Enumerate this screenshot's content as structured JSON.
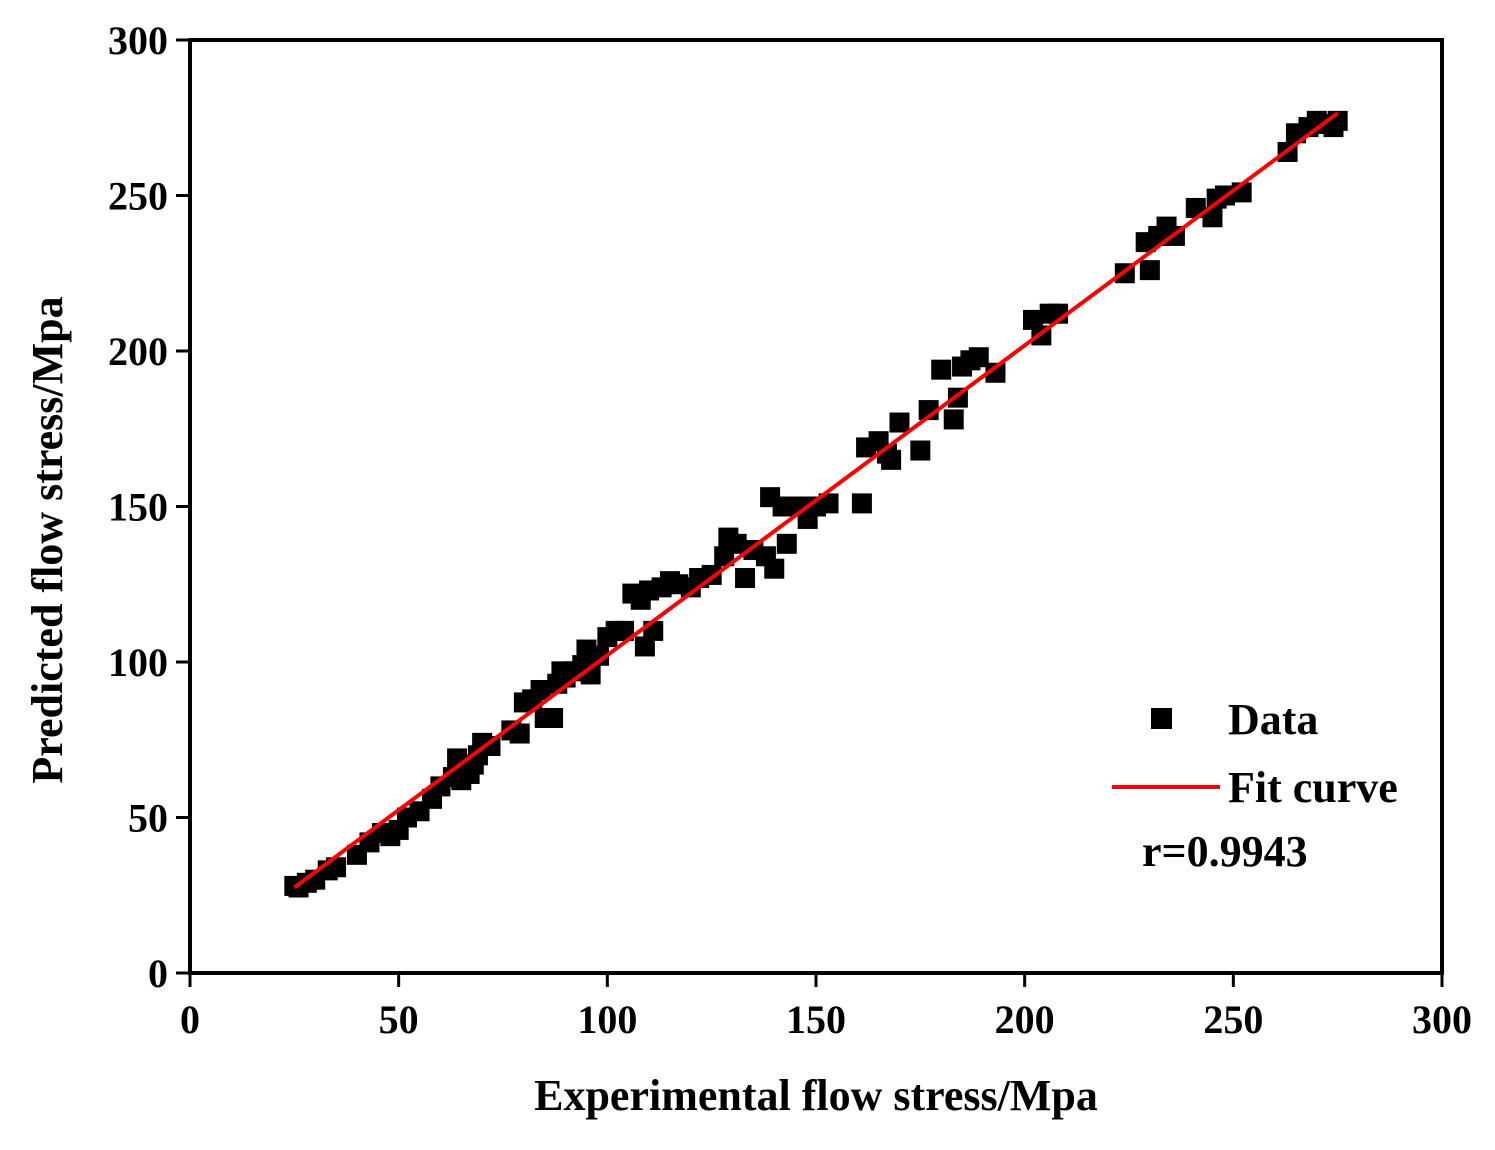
{
  "chart_data": {
    "type": "scatter",
    "title": "",
    "xlabel": "Experimental flow stress/Mpa",
    "ylabel": "Predicted flow stress/Mpa",
    "xlim": [
      0,
      300
    ],
    "ylim": [
      0,
      300
    ],
    "xticks": [
      "0",
      "50",
      "100",
      "150",
      "200",
      "250",
      "300"
    ],
    "yticks": [
      "0",
      "50",
      "100",
      "150",
      "200",
      "250",
      "300"
    ],
    "grid": false,
    "legend_position": "bottom-right",
    "legend": {
      "data_label": "Data",
      "fit_label": "Fit curve"
    },
    "annotation": "r=0.9943",
    "colors": {
      "data": "#000000",
      "fit": "#ff0000",
      "axis": "#000000"
    },
    "fit_line": {
      "x": [
        25,
        275
      ],
      "y": [
        27.5,
        276.5
      ]
    },
    "series": [
      {
        "name": "Data",
        "points": [
          [
            25,
            28
          ],
          [
            26,
            27.5
          ],
          [
            28,
            29
          ],
          [
            30,
            30
          ],
          [
            33,
            33
          ],
          [
            35,
            34
          ],
          [
            40,
            38
          ],
          [
            43,
            42
          ],
          [
            46,
            45
          ],
          [
            48,
            44
          ],
          [
            50,
            46
          ],
          [
            52,
            50
          ],
          [
            55,
            52
          ],
          [
            58,
            56
          ],
          [
            60,
            60
          ],
          [
            63,
            63
          ],
          [
            64,
            69
          ],
          [
            65,
            62
          ],
          [
            67,
            64
          ],
          [
            68,
            67
          ],
          [
            69,
            70
          ],
          [
            70,
            74
          ],
          [
            72,
            73
          ],
          [
            77,
            78
          ],
          [
            79,
            77
          ],
          [
            80,
            87
          ],
          [
            82,
            88
          ],
          [
            84,
            91
          ],
          [
            85,
            82
          ],
          [
            87,
            82
          ],
          [
            88,
            93
          ],
          [
            89,
            97
          ],
          [
            90,
            95
          ],
          [
            92,
            97
          ],
          [
            94,
            99
          ],
          [
            95,
            104
          ],
          [
            96,
            96
          ],
          [
            98,
            102
          ],
          [
            100,
            108
          ],
          [
            102,
            110
          ],
          [
            104,
            110
          ],
          [
            106,
            122
          ],
          [
            108,
            120
          ],
          [
            109,
            105
          ],
          [
            110,
            123
          ],
          [
            111,
            110
          ],
          [
            113,
            124
          ],
          [
            115,
            126
          ],
          [
            117,
            125
          ],
          [
            120,
            124
          ],
          [
            122,
            127
          ],
          [
            125,
            128
          ],
          [
            128,
            134
          ],
          [
            129,
            140
          ],
          [
            131,
            138
          ],
          [
            133,
            127
          ],
          [
            135,
            136
          ],
          [
            138,
            134
          ],
          [
            139,
            153
          ],
          [
            140,
            130
          ],
          [
            142,
            150
          ],
          [
            143,
            138
          ],
          [
            146,
            150
          ],
          [
            148,
            146
          ],
          [
            150,
            150
          ],
          [
            153,
            151
          ],
          [
            161,
            151
          ],
          [
            162,
            169
          ],
          [
            165,
            171
          ],
          [
            167,
            167
          ],
          [
            168,
            165
          ],
          [
            170,
            177
          ],
          [
            175,
            168
          ],
          [
            177,
            181
          ],
          [
            180,
            194
          ],
          [
            183,
            178
          ],
          [
            184,
            185
          ],
          [
            185,
            195
          ],
          [
            187,
            197
          ],
          [
            189,
            198
          ],
          [
            193,
            193
          ],
          [
            202,
            210
          ],
          [
            204,
            205
          ],
          [
            206,
            212
          ],
          [
            208,
            212
          ],
          [
            224,
            225
          ],
          [
            229,
            235
          ],
          [
            230,
            226
          ],
          [
            232,
            237
          ],
          [
            234,
            240
          ],
          [
            236,
            237
          ],
          [
            241,
            246
          ],
          [
            245,
            243
          ],
          [
            246,
            249
          ],
          [
            248,
            250
          ],
          [
            252,
            251
          ],
          [
            263,
            264
          ],
          [
            265,
            270
          ],
          [
            268,
            272
          ],
          [
            270,
            274
          ],
          [
            272,
            273
          ],
          [
            274,
            272
          ],
          [
            275,
            274
          ]
        ]
      }
    ]
  }
}
